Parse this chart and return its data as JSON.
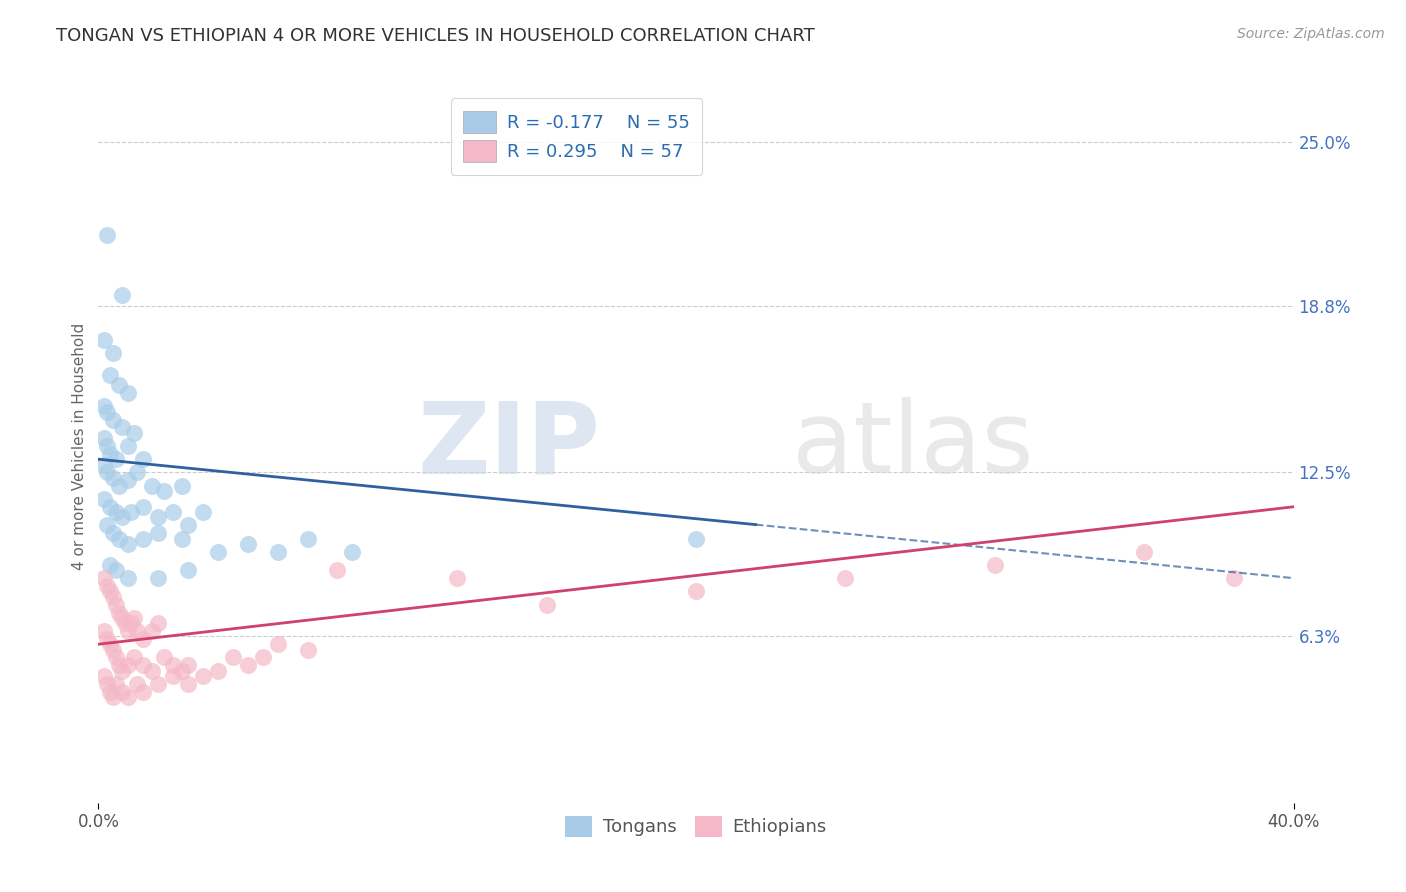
{
  "title": "TONGAN VS ETHIOPIAN 4 OR MORE VEHICLES IN HOUSEHOLD CORRELATION CHART",
  "source": "Source: ZipAtlas.com",
  "ylabel": "4 or more Vehicles in Household",
  "xlim": [
    0.0,
    40.0
  ],
  "ylim": [
    0.0,
    27.0
  ],
  "right_ytick_vals": [
    6.3,
    12.5,
    18.8,
    25.0
  ],
  "right_yticklabels": [
    "6.3%",
    "12.5%",
    "18.8%",
    "25.0%"
  ],
  "legend_r_tongan": "-0.177",
  "legend_n_tongan": "55",
  "legend_r_ethiopian": "0.295",
  "legend_n_ethiopian": "57",
  "tongan_color": "#a8cce8",
  "ethiopian_color": "#f4b8c8",
  "tongan_line_color": "#3060a0",
  "ethiopian_line_color": "#d04070",
  "background_color": "#ffffff",
  "grid_color": "#cccccc",
  "title_fontsize": 13,
  "tick_fontsize": 12,
  "right_tick_color": "#4472c4",
  "tongan_scatter": [
    [
      0.3,
      21.5
    ],
    [
      0.8,
      19.2
    ],
    [
      0.2,
      17.5
    ],
    [
      0.5,
      17.0
    ],
    [
      0.4,
      16.2
    ],
    [
      0.7,
      15.8
    ],
    [
      1.0,
      15.5
    ],
    [
      0.2,
      15.0
    ],
    [
      0.3,
      14.8
    ],
    [
      0.5,
      14.5
    ],
    [
      0.8,
      14.2
    ],
    [
      1.2,
      14.0
    ],
    [
      0.2,
      13.8
    ],
    [
      0.3,
      13.5
    ],
    [
      0.4,
      13.2
    ],
    [
      0.6,
      13.0
    ],
    [
      1.0,
      13.5
    ],
    [
      1.5,
      13.0
    ],
    [
      0.2,
      12.8
    ],
    [
      0.3,
      12.5
    ],
    [
      0.5,
      12.3
    ],
    [
      0.7,
      12.0
    ],
    [
      1.0,
      12.2
    ],
    [
      1.3,
      12.5
    ],
    [
      1.8,
      12.0
    ],
    [
      2.2,
      11.8
    ],
    [
      2.8,
      12.0
    ],
    [
      0.2,
      11.5
    ],
    [
      0.4,
      11.2
    ],
    [
      0.6,
      11.0
    ],
    [
      0.8,
      10.8
    ],
    [
      1.1,
      11.0
    ],
    [
      1.5,
      11.2
    ],
    [
      2.0,
      10.8
    ],
    [
      2.5,
      11.0
    ],
    [
      3.0,
      10.5
    ],
    [
      3.5,
      11.0
    ],
    [
      0.3,
      10.5
    ],
    [
      0.5,
      10.2
    ],
    [
      0.7,
      10.0
    ],
    [
      1.0,
      9.8
    ],
    [
      1.5,
      10.0
    ],
    [
      2.0,
      10.2
    ],
    [
      2.8,
      10.0
    ],
    [
      4.0,
      9.5
    ],
    [
      5.0,
      9.8
    ],
    [
      6.0,
      9.5
    ],
    [
      7.0,
      10.0
    ],
    [
      8.5,
      9.5
    ],
    [
      0.4,
      9.0
    ],
    [
      0.6,
      8.8
    ],
    [
      1.0,
      8.5
    ],
    [
      2.0,
      8.5
    ],
    [
      3.0,
      8.8
    ],
    [
      20.0,
      10.0
    ]
  ],
  "ethiopian_scatter": [
    [
      0.2,
      8.5
    ],
    [
      0.3,
      8.2
    ],
    [
      0.4,
      8.0
    ],
    [
      0.5,
      7.8
    ],
    [
      0.6,
      7.5
    ],
    [
      0.7,
      7.2
    ],
    [
      0.8,
      7.0
    ],
    [
      0.9,
      6.8
    ],
    [
      1.0,
      6.5
    ],
    [
      1.1,
      6.8
    ],
    [
      1.2,
      7.0
    ],
    [
      1.3,
      6.5
    ],
    [
      1.5,
      6.2
    ],
    [
      1.8,
      6.5
    ],
    [
      2.0,
      6.8
    ],
    [
      0.2,
      6.5
    ],
    [
      0.3,
      6.2
    ],
    [
      0.4,
      6.0
    ],
    [
      0.5,
      5.8
    ],
    [
      0.6,
      5.5
    ],
    [
      0.7,
      5.2
    ],
    [
      0.8,
      5.0
    ],
    [
      1.0,
      5.2
    ],
    [
      1.2,
      5.5
    ],
    [
      1.5,
      5.2
    ],
    [
      1.8,
      5.0
    ],
    [
      2.2,
      5.5
    ],
    [
      2.5,
      5.2
    ],
    [
      2.8,
      5.0
    ],
    [
      3.0,
      5.2
    ],
    [
      0.2,
      4.8
    ],
    [
      0.3,
      4.5
    ],
    [
      0.4,
      4.2
    ],
    [
      0.5,
      4.0
    ],
    [
      0.6,
      4.5
    ],
    [
      0.8,
      4.2
    ],
    [
      1.0,
      4.0
    ],
    [
      1.3,
      4.5
    ],
    [
      1.5,
      4.2
    ],
    [
      2.0,
      4.5
    ],
    [
      2.5,
      4.8
    ],
    [
      3.0,
      4.5
    ],
    [
      3.5,
      4.8
    ],
    [
      4.0,
      5.0
    ],
    [
      4.5,
      5.5
    ],
    [
      5.0,
      5.2
    ],
    [
      5.5,
      5.5
    ],
    [
      6.0,
      6.0
    ],
    [
      7.0,
      5.8
    ],
    [
      8.0,
      8.8
    ],
    [
      12.0,
      8.5
    ],
    [
      15.0,
      7.5
    ],
    [
      20.0,
      8.0
    ],
    [
      25.0,
      8.5
    ],
    [
      30.0,
      9.0
    ],
    [
      35.0,
      9.5
    ],
    [
      38.0,
      8.5
    ]
  ],
  "tongan_line_x0": 0.0,
  "tongan_line_x1": 40.0,
  "tongan_line_y0": 13.0,
  "tongan_line_y1": 8.5,
  "tongan_solid_x1": 22.0,
  "ethiopian_line_x0": 0.0,
  "ethiopian_line_x1": 40.0,
  "ethiopian_line_y0": 6.0,
  "ethiopian_line_y1": 11.2
}
